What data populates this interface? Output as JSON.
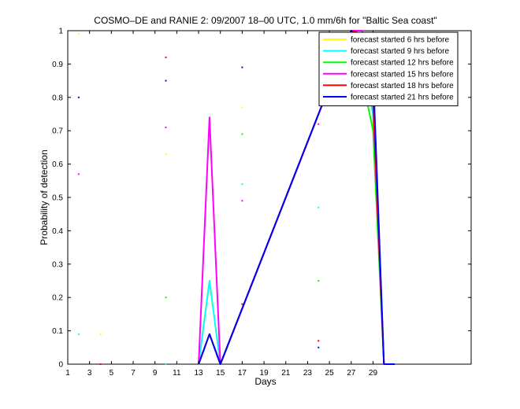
{
  "chart_data": {
    "type": "line",
    "title": "COSMO–DE and RANIE 2: 09/2007 18–00 UTC, 1.0 mm/6h for \"Baltic Sea coast\"",
    "xlabel": "Days",
    "ylabel": "Probability of detection",
    "xlim": [
      1,
      38
    ],
    "ylim": [
      0,
      1
    ],
    "x_ticks": [
      "1",
      "3",
      "5",
      "7",
      "9",
      "11",
      "13",
      "15",
      "17",
      "19",
      "21",
      "23",
      "25",
      "27",
      "29"
    ],
    "y_ticks": [
      "0",
      "0.1",
      "0.2",
      "0.3",
      "0.4",
      "0.5",
      "0.6",
      "0.7",
      "0.8",
      "0.9",
      "1"
    ],
    "grid": false,
    "legend_position": "top-right",
    "series": [
      {
        "name": "forecast started 6 hrs before",
        "color": "#ffff00",
        "points": [
          [
            2,
            0.99
          ],
          [
            4,
            0.09
          ],
          [
            10,
            0.63
          ],
          [
            17,
            0.77
          ],
          [
            24,
            0.95
          ]
        ],
        "line": [
          [
            13,
            0
          ],
          [
            14,
            0.25
          ],
          [
            15,
            0
          ],
          [
            27,
            1
          ],
          [
            28,
            1
          ],
          [
            29,
            0.87
          ],
          [
            30,
            0
          ],
          [
            31,
            0
          ]
        ]
      },
      {
        "name": "forecast started 9 hrs before",
        "color": "#00ffff",
        "points": [
          [
            2,
            0.09
          ],
          [
            10,
            0
          ],
          [
            17,
            0.54
          ],
          [
            24,
            0.47
          ]
        ],
        "line": [
          [
            13,
            0
          ],
          [
            14,
            0.25
          ],
          [
            15,
            0
          ],
          [
            27,
            1
          ],
          [
            28,
            0.9
          ],
          [
            29,
            0.75
          ],
          [
            30,
            0
          ],
          [
            31,
            0
          ]
        ]
      },
      {
        "name": "forecast started 12 hrs before",
        "color": "#00ff00",
        "points": [
          [
            10,
            0.2
          ],
          [
            17,
            0.69
          ],
          [
            24,
            0.25
          ]
        ],
        "line": [
          [
            13,
            0
          ],
          [
            14,
            0.09
          ],
          [
            15,
            0
          ],
          [
            27,
            1
          ],
          [
            28,
            0.86
          ],
          [
            29,
            0.7
          ],
          [
            30,
            0
          ],
          [
            31,
            0
          ]
        ]
      },
      {
        "name": "forecast started 15 hrs before",
        "color": "#ff00ff",
        "points": [
          [
            2,
            0.57
          ],
          [
            10,
            0.71
          ],
          [
            17,
            0.49
          ],
          [
            24,
            0.72
          ]
        ],
        "line": [
          [
            13,
            0
          ],
          [
            14,
            0.74
          ],
          [
            15,
            0
          ],
          [
            27,
            1
          ],
          [
            28,
            1
          ],
          [
            29,
            0.78
          ],
          [
            30,
            0
          ],
          [
            31,
            0
          ]
        ]
      },
      {
        "name": "forecast started 18 hrs before",
        "color": "#ff0000",
        "points": [
          [
            4,
            0
          ],
          [
            10,
            0.92
          ],
          [
            17,
            0.18
          ],
          [
            24,
            0.07
          ]
        ],
        "line": [
          [
            13,
            0
          ],
          [
            14,
            0.09
          ],
          [
            15,
            0
          ],
          [
            27,
            1
          ],
          [
            28,
            0.99
          ],
          [
            29,
            0.8
          ],
          [
            30,
            0
          ],
          [
            31,
            0
          ]
        ]
      },
      {
        "name": "forecast started 21 hrs before",
        "color": "#0000ff",
        "points": [
          [
            2,
            0.8
          ],
          [
            10,
            0.85
          ],
          [
            17,
            0.89
          ],
          [
            24,
            0.05
          ]
        ],
        "line": [
          [
            13,
            0
          ],
          [
            14,
            0.09
          ],
          [
            15,
            0
          ],
          [
            27,
            1
          ],
          [
            28,
            0.88
          ],
          [
            29,
            0.88
          ],
          [
            30,
            0
          ],
          [
            31,
            0
          ]
        ]
      }
    ]
  }
}
